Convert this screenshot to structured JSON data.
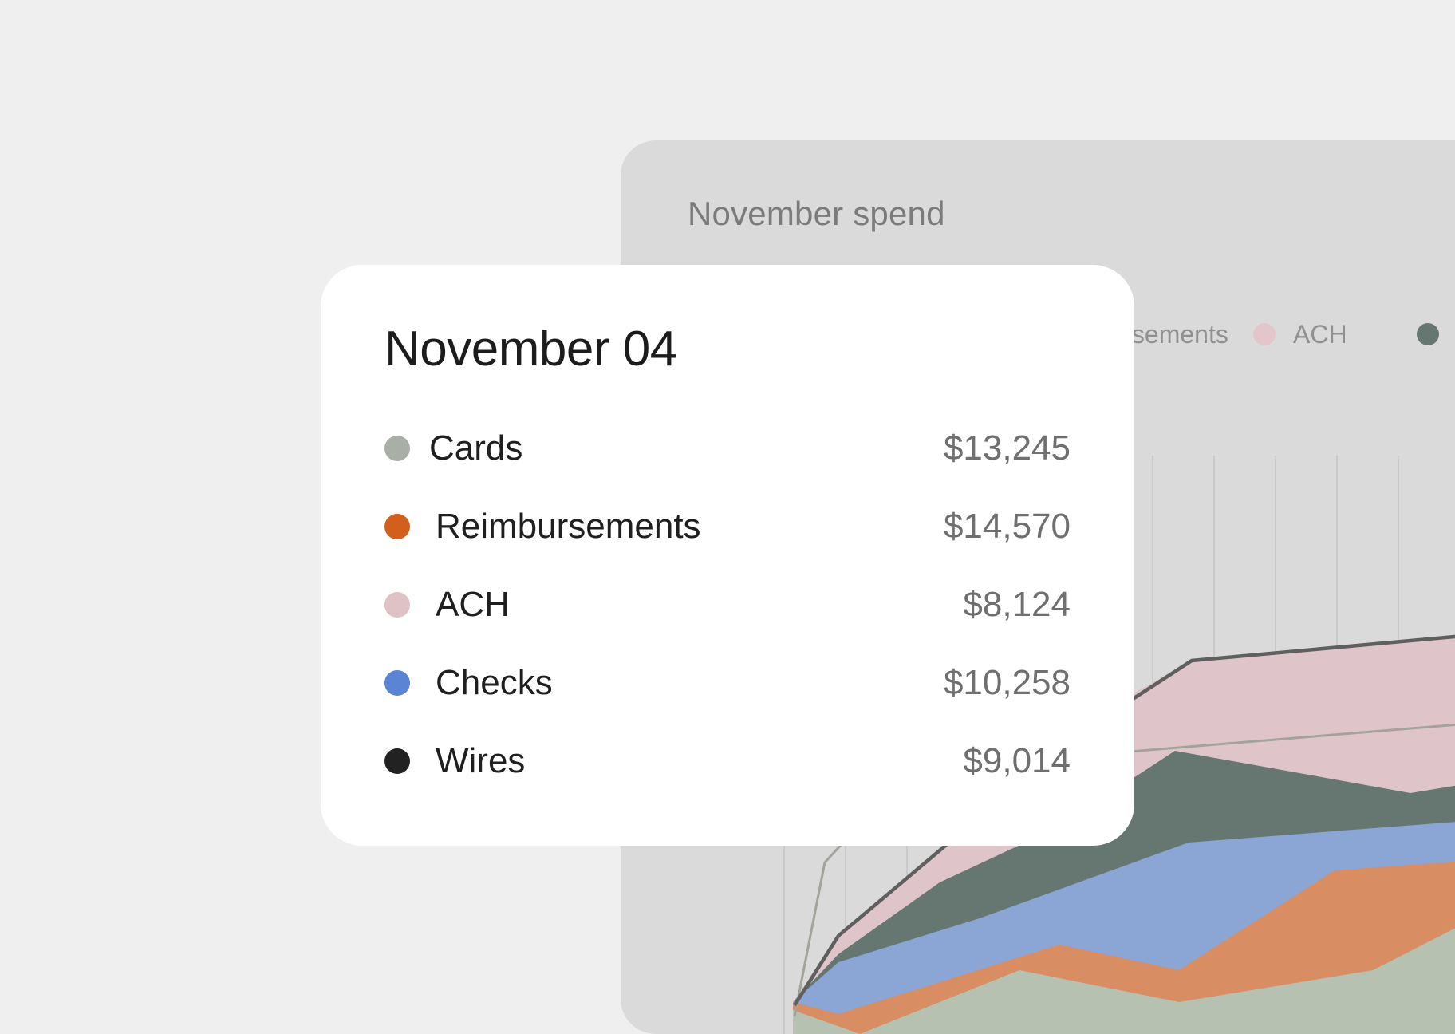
{
  "chart_panel": {
    "title": "November spend",
    "legend": [
      {
        "label": "Reimbursements",
        "color": "#d35f1c"
      },
      {
        "label": "ACH",
        "color": "#e3c6cc"
      },
      {
        "label": "",
        "color": "#667671"
      }
    ]
  },
  "chart_data": {
    "type": "area",
    "title": "November spend",
    "stacked": true,
    "series": [
      {
        "name": "Cards",
        "color": "#b7c1b2"
      },
      {
        "name": "Reimbursements",
        "color": "#d88d63"
      },
      {
        "name": "Checks",
        "color": "#8ba5d4"
      },
      {
        "name": "Wires",
        "color": "#667671"
      },
      {
        "name": "ACH",
        "color": "#dfc4c9"
      }
    ],
    "grid": "vertical"
  },
  "tooltip": {
    "title": "November 04",
    "items": [
      {
        "label": "Cards",
        "value": "$13,245",
        "color": "#a9aea6"
      },
      {
        "label": "Reimbursements",
        "value": "$14,570",
        "color": "#d35f1c"
      },
      {
        "label": "ACH",
        "value": "$8,124",
        "color": "#dfc2c6"
      },
      {
        "label": "Checks",
        "value": "$10,258",
        "color": "#5b84d5"
      },
      {
        "label": "Wires",
        "value": "$9,014",
        "color": "#222222"
      }
    ]
  }
}
